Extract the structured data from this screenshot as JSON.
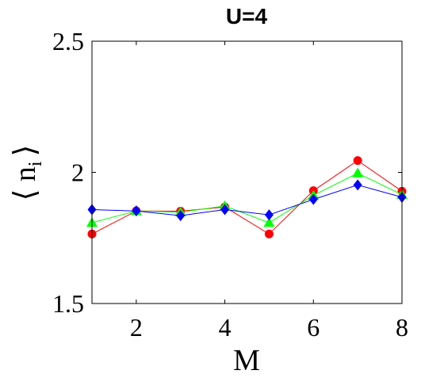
{
  "chart_data": {
    "type": "line",
    "title": "U=4",
    "xlabel": "M",
    "ylabel": "⟨ n",
    "ylabel_subscript": "i",
    "ylabel_close": "⟩",
    "xlim": [
      1,
      8
    ],
    "ylim": [
      1.5,
      2.5
    ],
    "xticks": [
      2,
      4,
      6,
      8
    ],
    "xtick_labels": [
      "2",
      "4",
      "6",
      "8"
    ],
    "yticks": [
      1.5,
      2,
      2.5
    ],
    "ytick_labels": [
      "1.5",
      "2",
      "2.5"
    ],
    "grid": false,
    "x": [
      1,
      2,
      3,
      4,
      5,
      6,
      7,
      8
    ],
    "series": [
      {
        "marker": "circle",
        "color": "#ff0000",
        "values": [
          1.765,
          1.853,
          1.852,
          1.868,
          1.765,
          1.93,
          2.045,
          1.928
        ]
      },
      {
        "marker": "triangle",
        "color": "#00ff00",
        "values": [
          1.808,
          1.853,
          1.848,
          1.872,
          1.808,
          1.912,
          1.997,
          1.915
        ]
      },
      {
        "marker": "diamond",
        "color": "#0000ff",
        "values": [
          1.858,
          1.853,
          1.835,
          1.858,
          1.838,
          1.897,
          1.952,
          1.905
        ]
      }
    ]
  }
}
